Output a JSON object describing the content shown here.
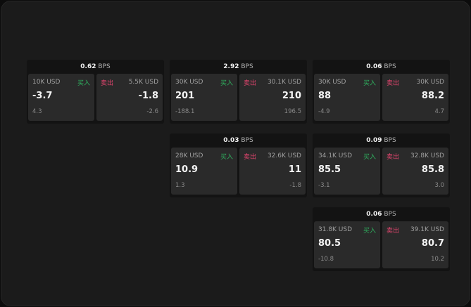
{
  "unit": "BPS",
  "buy_label": "买入",
  "sell_label": "卖出",
  "colors": {
    "buy": "#2fae5e",
    "sell": "#e0456e"
  },
  "cards": [
    {
      "spread": "0.62",
      "bid": {
        "size": "10K USD",
        "price": "-3.7",
        "change": "4.3"
      },
      "ask": {
        "size": "5.5K USD",
        "price": "-1.8",
        "change": "-2.6"
      }
    },
    {
      "spread": "2.92",
      "bid": {
        "size": "30K USD",
        "price": "201",
        "change": "-188.1"
      },
      "ask": {
        "size": "30.1K USD",
        "price": "210",
        "change": "196.5"
      }
    },
    {
      "spread": "0.06",
      "bid": {
        "size": "30K USD",
        "price": "88",
        "change": "-4.9"
      },
      "ask": {
        "size": "30K USD",
        "price": "88.2",
        "change": "4.7"
      }
    },
    {
      "spread": "0.03",
      "bid": {
        "size": "28K USD",
        "price": "10.9",
        "change": "1.3"
      },
      "ask": {
        "size": "32.6K USD",
        "price": "11",
        "change": "-1.8"
      }
    },
    {
      "spread": "0.09",
      "bid": {
        "size": "34.1K USD",
        "price": "85.5",
        "change": "-3.1"
      },
      "ask": {
        "size": "32.8K USD",
        "price": "85.8",
        "change": "3.0"
      }
    },
    {
      "spread": "0.06",
      "bid": {
        "size": "31.8K USD",
        "price": "80.5",
        "change": "-10.8"
      },
      "ask": {
        "size": "39.1K USD",
        "price": "80.7",
        "change": "10.2"
      }
    }
  ]
}
